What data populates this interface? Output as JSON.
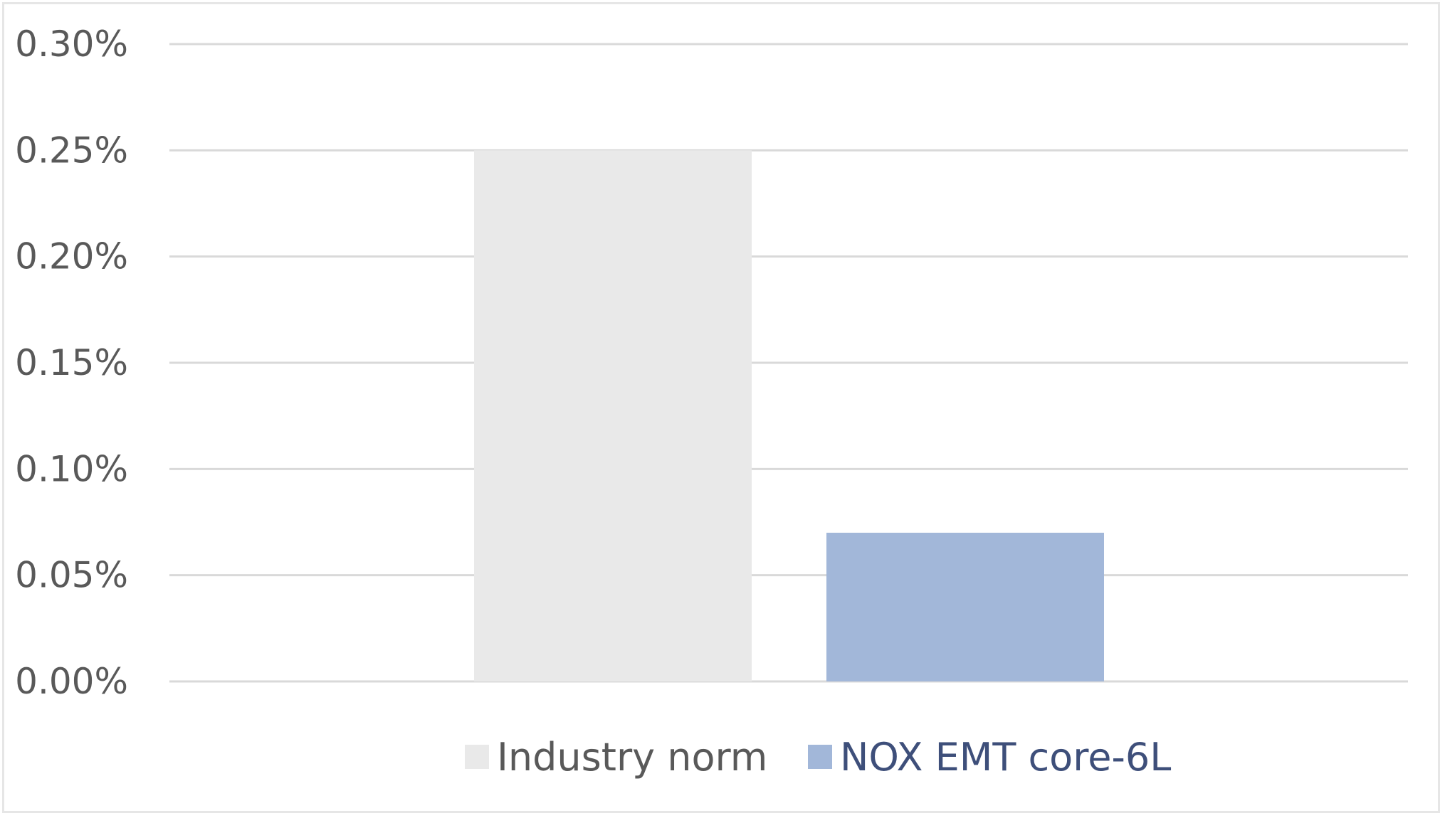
{
  "chart_data": {
    "type": "bar",
    "title": "",
    "xlabel": "",
    "ylabel": "",
    "ylim": [
      0,
      0.3
    ],
    "yticks": [
      0.0,
      0.05,
      0.1,
      0.15,
      0.2,
      0.25,
      0.3
    ],
    "ytick_labels": [
      "0.00%",
      "0.05%",
      "0.10%",
      "0.15%",
      "0.20%",
      "0.25%",
      "0.30%"
    ],
    "grid": true,
    "legend_position": "bottom",
    "series": [
      {
        "name": "Industry norm",
        "values": [
          0.25
        ],
        "color": "#e9e9e9",
        "legend_text_color": "#595959"
      },
      {
        "name": "NOX EMT core-6L",
        "values": [
          0.07
        ],
        "color": "#a2b7d9",
        "legend_text_color": "#3e4f7a"
      }
    ]
  }
}
